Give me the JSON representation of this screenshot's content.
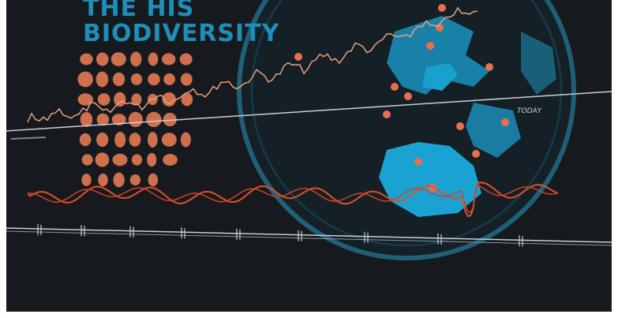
{
  "header": {
    "title_partial": "THE HIS",
    "title": "BIODIVERSITY"
  },
  "labels": {
    "today": "TODAY"
  }
}
